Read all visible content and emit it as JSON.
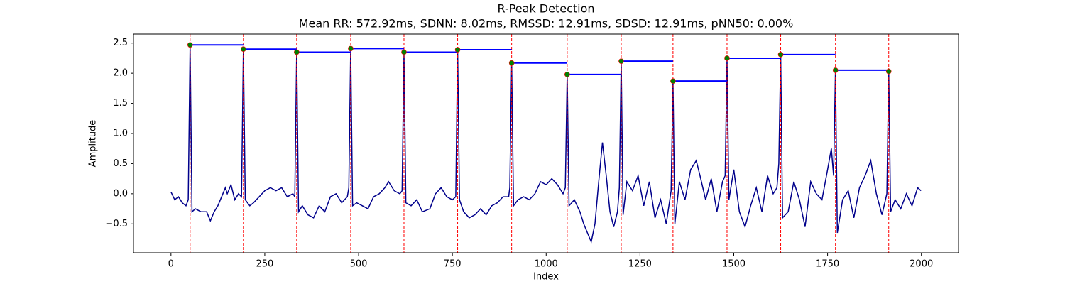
{
  "chart_data": {
    "type": "line",
    "title": "R-Peak Detection",
    "subtitle": "Mean RR: 572.92ms, SDNN: 8.02ms, RMSSD: 12.91ms, SDSD: 12.91ms, pNN50: 0.00%",
    "x_label": "Index",
    "y_label": "Amplitude",
    "color": "#00008b",
    "x": [
      0,
      10,
      20,
      30,
      40,
      46,
      51,
      56,
      65,
      80,
      95,
      105,
      115,
      125,
      135,
      145,
      150,
      160,
      170,
      180,
      188,
      193,
      198,
      210,
      220,
      235,
      250,
      265,
      280,
      295,
      310,
      325,
      330,
      335,
      340,
      350,
      365,
      380,
      395,
      410,
      425,
      440,
      455,
      470,
      474,
      479,
      484,
      495,
      510,
      525,
      540,
      555,
      570,
      580,
      595,
      610,
      616,
      621,
      626,
      640,
      655,
      670,
      690,
      705,
      720,
      735,
      750,
      759,
      764,
      769,
      780,
      795,
      810,
      825,
      840,
      855,
      870,
      885,
      900,
      903,
      908,
      913,
      925,
      940,
      955,
      970,
      985,
      1000,
      1015,
      1030,
      1045,
      1051,
      1056,
      1061,
      1075,
      1090,
      1100,
      1110,
      1120,
      1130,
      1140,
      1150,
      1160,
      1170,
      1180,
      1190,
      1195,
      1200,
      1205,
      1215,
      1230,
      1245,
      1260,
      1275,
      1290,
      1305,
      1320,
      1333,
      1338,
      1343,
      1355,
      1370,
      1385,
      1400,
      1410,
      1425,
      1440,
      1455,
      1470,
      1477,
      1482,
      1487,
      1500,
      1515,
      1530,
      1545,
      1560,
      1575,
      1590,
      1605,
      1615,
      1620,
      1625,
      1630,
      1645,
      1660,
      1675,
      1690,
      1705,
      1720,
      1735,
      1750,
      1760,
      1766,
      1771,
      1776,
      1790,
      1805,
      1820,
      1835,
      1850,
      1865,
      1880,
      1895,
      1908,
      1913,
      1918,
      1930,
      1945,
      1960,
      1975,
      1990,
      1999
    ],
    "values": [
      0.03,
      -0.1,
      -0.05,
      -0.15,
      -0.2,
      -0.1,
      2.47,
      -0.3,
      -0.25,
      -0.3,
      -0.3,
      -0.45,
      -0.3,
      -0.2,
      -0.05,
      0.1,
      0.0,
      0.15,
      -0.1,
      0.0,
      -0.05,
      2.4,
      -0.1,
      -0.2,
      -0.15,
      -0.05,
      0.05,
      0.1,
      0.05,
      0.1,
      -0.05,
      0.0,
      -0.05,
      2.35,
      -0.3,
      -0.2,
      -0.35,
      -0.4,
      -0.2,
      -0.3,
      -0.05,
      0.0,
      -0.15,
      -0.05,
      0.1,
      2.41,
      -0.2,
      -0.15,
      -0.2,
      -0.25,
      -0.05,
      0.0,
      0.1,
      0.2,
      0.05,
      0.0,
      0.05,
      2.35,
      -0.15,
      -0.2,
      -0.1,
      -0.3,
      -0.25,
      0.0,
      0.1,
      -0.05,
      -0.1,
      -0.05,
      2.39,
      -0.1,
      -0.3,
      -0.4,
      -0.35,
      -0.25,
      -0.35,
      -0.2,
      -0.15,
      -0.05,
      -0.05,
      0.1,
      2.17,
      -0.2,
      -0.1,
      -0.05,
      -0.1,
      0.0,
      0.2,
      0.15,
      0.25,
      0.15,
      0.0,
      0.1,
      1.98,
      -0.2,
      -0.1,
      -0.3,
      -0.5,
      -0.65,
      -0.8,
      -0.5,
      0.2,
      0.85,
      0.3,
      -0.3,
      -0.55,
      -0.3,
      0.1,
      2.2,
      -0.35,
      0.2,
      0.05,
      0.3,
      -0.2,
      0.2,
      -0.4,
      -0.1,
      -0.5,
      0.05,
      1.87,
      -0.5,
      0.2,
      -0.1,
      0.4,
      0.55,
      0.3,
      -0.1,
      0.25,
      -0.3,
      0.2,
      0.3,
      2.25,
      -0.1,
      0.4,
      -0.3,
      -0.55,
      -0.2,
      0.1,
      -0.3,
      0.3,
      0.0,
      0.1,
      0.5,
      2.31,
      -0.4,
      -0.3,
      0.2,
      -0.1,
      -0.55,
      0.2,
      0.0,
      -0.1,
      0.4,
      0.75,
      0.3,
      2.05,
      -0.65,
      -0.1,
      0.05,
      -0.4,
      0.1,
      0.3,
      0.55,
      0.0,
      -0.35,
      0.0,
      2.03,
      -0.3,
      -0.1,
      -0.25,
      0.0,
      -0.2,
      0.1,
      0.05
    ],
    "peaks": {
      "x": [
        51,
        193,
        335,
        479,
        621,
        764,
        908,
        1056,
        1200,
        1338,
        1482,
        1625,
        1771,
        1913
      ],
      "values": [
        2.47,
        2.4,
        2.35,
        2.41,
        2.35,
        2.39,
        2.17,
        1.98,
        2.2,
        1.87,
        2.25,
        2.31,
        2.05,
        2.03
      ],
      "color": "#008000",
      "edge_color": "#ff0000",
      "line_color": "#ff0000",
      "rr_color": "#0000ff"
    },
    "xlim": [
      -99.95,
      2098.95
    ],
    "ylim": [
      -0.98,
      2.65
    ],
    "xticks": [
      0,
      250,
      500,
      750,
      1000,
      1250,
      1500,
      1750,
      2000
    ],
    "yticks": [
      {
        "value": -0.5,
        "label": "−0.5"
      },
      {
        "value": 0,
        "label": "0.0"
      },
      0.5,
      {
        "value": 1,
        "label": "1.0"
      },
      1.5,
      {
        "value": 2,
        "label": "2.0"
      },
      2.5
    ],
    "grid": false
  }
}
